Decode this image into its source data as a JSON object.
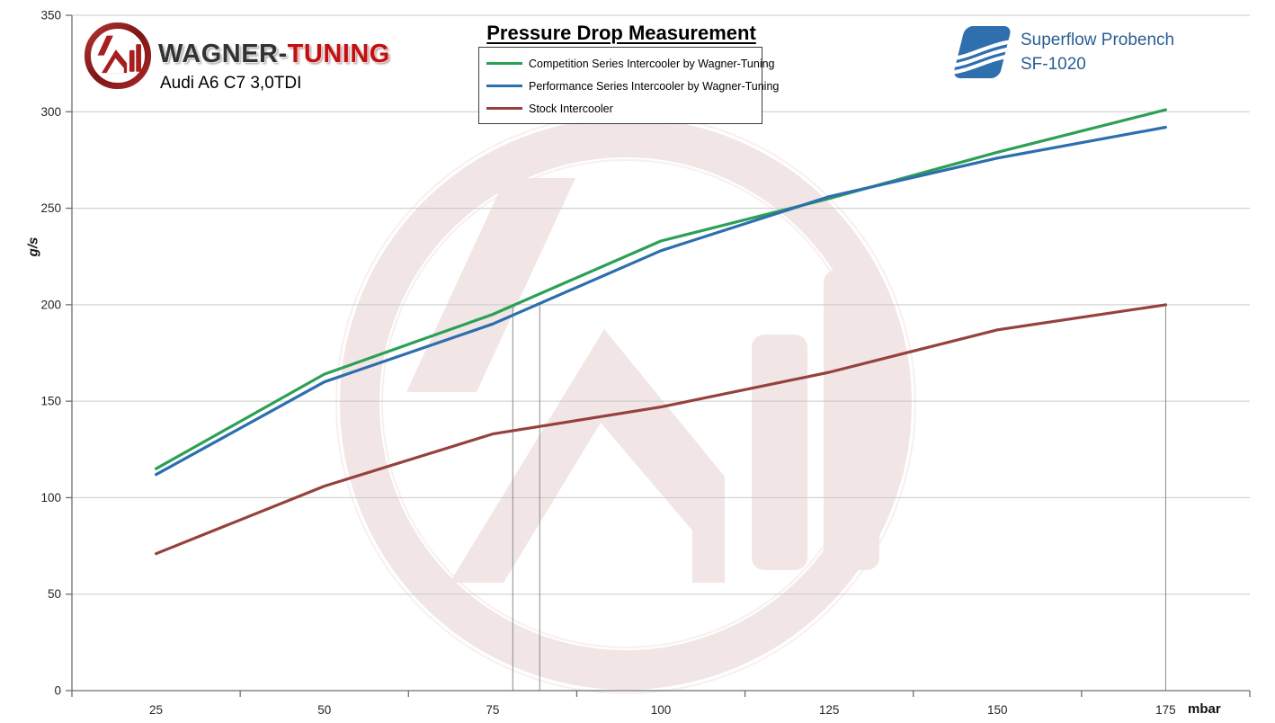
{
  "header": {
    "brand": {
      "black": "WAGNER-",
      "red": "TUNING"
    },
    "vehicle": "Audi A6 C7 3,0TDI",
    "bench": {
      "line1": "Superflow Probench",
      "line2": "SF-1020"
    }
  },
  "chart_data": {
    "type": "line",
    "title": "Pressure Drop Measurement",
    "xlabel": "mbar",
    "ylabel": "g/s",
    "x": [
      25,
      50,
      75,
      100,
      125,
      150,
      175
    ],
    "y_ticks": [
      0,
      50,
      100,
      150,
      200,
      250,
      300,
      350
    ],
    "ylim": [
      0,
      350
    ],
    "grid": "horizontal",
    "legend_position": "top-center",
    "series": [
      {
        "name": "Competition Series Intercooler by Wagner-Tuning",
        "color": "#2ca055",
        "values": [
          115,
          164,
          195,
          233,
          255,
          279,
          301
        ]
      },
      {
        "name": "Performance Series Intercooler by Wagner-Tuning",
        "color": "#2d6eaf",
        "values": [
          112,
          160,
          190,
          228,
          256,
          276,
          292
        ]
      },
      {
        "name": "Stock Intercooler",
        "color": "#96413e",
        "values": [
          71,
          106,
          133,
          147,
          165,
          187,
          200
        ]
      }
    ],
    "drop_lines": [
      {
        "x_mbar": 78,
        "from_gs": 200
      },
      {
        "x_mbar": 82,
        "from_gs": 200
      },
      {
        "x_mbar": 175,
        "from_gs": 200
      }
    ],
    "colors": {
      "grid": "#c9c9c9",
      "axis": "#6e6e6e",
      "drop_line": "#8a8a8a",
      "tick_label": "#262626",
      "watermark": "#9b4a40"
    }
  }
}
